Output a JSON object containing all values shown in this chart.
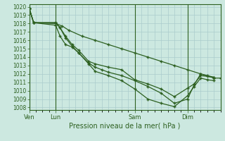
{
  "title": "Pression niveau de la mer( hPa )",
  "background_color": "#cce8e0",
  "grid_color": "#aacccc",
  "line_color": "#2d6020",
  "ylim": [
    1008,
    1020
  ],
  "yticks": [
    1008,
    1009,
    1010,
    1011,
    1012,
    1013,
    1014,
    1015,
    1016,
    1017,
    1018,
    1019,
    1020
  ],
  "day_labels": [
    "Ven",
    "Lun",
    "Sam",
    "Dim"
  ],
  "day_positions": [
    0,
    24,
    96,
    144
  ],
  "total_hours": 174,
  "series": [
    {
      "x": [
        0,
        4,
        24,
        30,
        36,
        48,
        60,
        72,
        84,
        96,
        108,
        120,
        132,
        144,
        156,
        168,
        174
      ],
      "y": [
        1019.8,
        1018.1,
        1018.0,
        1017.7,
        1017.2,
        1016.5,
        1016.0,
        1015.5,
        1015.0,
        1014.5,
        1014.0,
        1013.5,
        1013.0,
        1012.5,
        1012.0,
        1011.5,
        1011.5
      ]
    },
    {
      "x": [
        0,
        4,
        24,
        28,
        33,
        39,
        45,
        54,
        60,
        72,
        84,
        96,
        108,
        120,
        132,
        144,
        150,
        156,
        162,
        168
      ],
      "y": [
        1019.8,
        1018.1,
        1018.1,
        1017.5,
        1016.5,
        1015.5,
        1014.8,
        1013.5,
        1013.2,
        1012.8,
        1012.5,
        1011.3,
        1010.8,
        1010.2,
        1009.3,
        1010.3,
        1010.8,
        1011.8,
        1011.7,
        1011.6
      ]
    },
    {
      "x": [
        0,
        4,
        24,
        28,
        33,
        39,
        45,
        54,
        60,
        66,
        72,
        84,
        96,
        108,
        120,
        132,
        144,
        150,
        156,
        162,
        168
      ],
      "y": [
        1019.8,
        1018.1,
        1018.1,
        1017.5,
        1016.3,
        1015.3,
        1014.5,
        1013.3,
        1012.8,
        1012.5,
        1012.2,
        1011.8,
        1011.2,
        1010.5,
        1009.7,
        1008.5,
        1009.0,
        1010.7,
        1012.0,
        1011.8,
        1011.6
      ]
    },
    {
      "x": [
        0,
        4,
        24,
        28,
        33,
        39,
        45,
        54,
        60,
        72,
        84,
        96,
        108,
        120,
        132,
        144,
        150,
        156,
        162,
        168
      ],
      "y": [
        1019.8,
        1018.1,
        1017.8,
        1016.5,
        1015.5,
        1015.2,
        1014.5,
        1013.2,
        1012.3,
        1011.8,
        1011.2,
        1010.2,
        1009.0,
        1008.5,
        1008.1,
        1009.4,
        1010.5,
        1011.5,
        1011.3,
        1011.2
      ]
    }
  ]
}
